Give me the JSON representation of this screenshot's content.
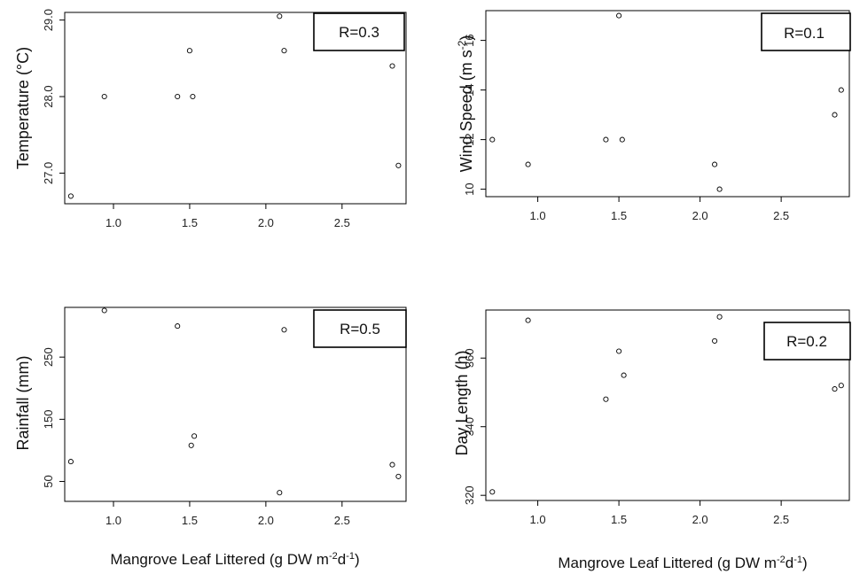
{
  "x_label_main": "Mangrove Leaf Littered (g DW m",
  "x_label_sup1": "-2",
  "x_label_mid": "d",
  "x_label_sup2": "-1",
  "x_label_end": ")",
  "chart_data": [
    {
      "type": "scatter",
      "ylabel": "Temperature (°C)",
      "r_label": "R=0.3",
      "x_ticks": [
        "1.0",
        "1.5",
        "2.0",
        "2.5"
      ],
      "y_ticks": [
        "27.0",
        "28.0",
        "29.0"
      ],
      "xlim": [
        0.68,
        2.92
      ],
      "ylim": [
        26.6,
        29.1
      ],
      "x": [
        0.72,
        0.94,
        1.42,
        1.52,
        1.5,
        2.09,
        2.12,
        2.83,
        2.87
      ],
      "y": [
        26.7,
        28.0,
        28.0,
        28.0,
        28.6,
        29.05,
        28.6,
        28.4,
        27.1
      ]
    },
    {
      "type": "scatter",
      "ylabel_main": "Wind Speed (m s",
      "ylabel_sup": "-2",
      "ylabel_end": ")",
      "r_label": "R=0.1",
      "x_ticks": [
        "1.0",
        "1.5",
        "2.0",
        "2.5"
      ],
      "y_ticks": [
        "10",
        "12",
        "14",
        "16"
      ],
      "xlim": [
        0.68,
        2.92
      ],
      "ylim": [
        9.7,
        17.2
      ],
      "x": [
        0.72,
        0.94,
        1.42,
        1.52,
        1.5,
        2.09,
        2.12,
        2.83,
        2.87
      ],
      "y": [
        12,
        11,
        12,
        12,
        17,
        11,
        10,
        13,
        14
      ]
    },
    {
      "type": "scatter",
      "ylabel": "Rainfall (mm)",
      "r_label": "R=0.5",
      "x_ticks": [
        "1.0",
        "1.5",
        "2.0",
        "2.5"
      ],
      "y_ticks": [
        "50",
        "150",
        "250"
      ],
      "xlim": [
        0.68,
        2.92
      ],
      "ylim": [
        18,
        330
      ],
      "x": [
        0.72,
        0.94,
        1.42,
        1.51,
        1.53,
        2.09,
        2.12,
        2.83,
        2.87
      ],
      "y": [
        82,
        325,
        300,
        108,
        123,
        32,
        294,
        77,
        58
      ]
    },
    {
      "type": "scatter",
      "ylabel": "Day Length (h)",
      "r_label": "R=0.2",
      "x_ticks": [
        "1.0",
        "1.5",
        "2.0",
        "2.5"
      ],
      "y_ticks": [
        "320",
        "340",
        "360"
      ],
      "xlim": [
        0.68,
        2.92
      ],
      "ylim": [
        318.5,
        374
      ],
      "x": [
        0.72,
        0.94,
        1.42,
        1.5,
        1.53,
        2.09,
        2.12,
        2.83,
        2.87
      ],
      "y": [
        321,
        371,
        348,
        362,
        355,
        365,
        372,
        351,
        352
      ]
    }
  ]
}
